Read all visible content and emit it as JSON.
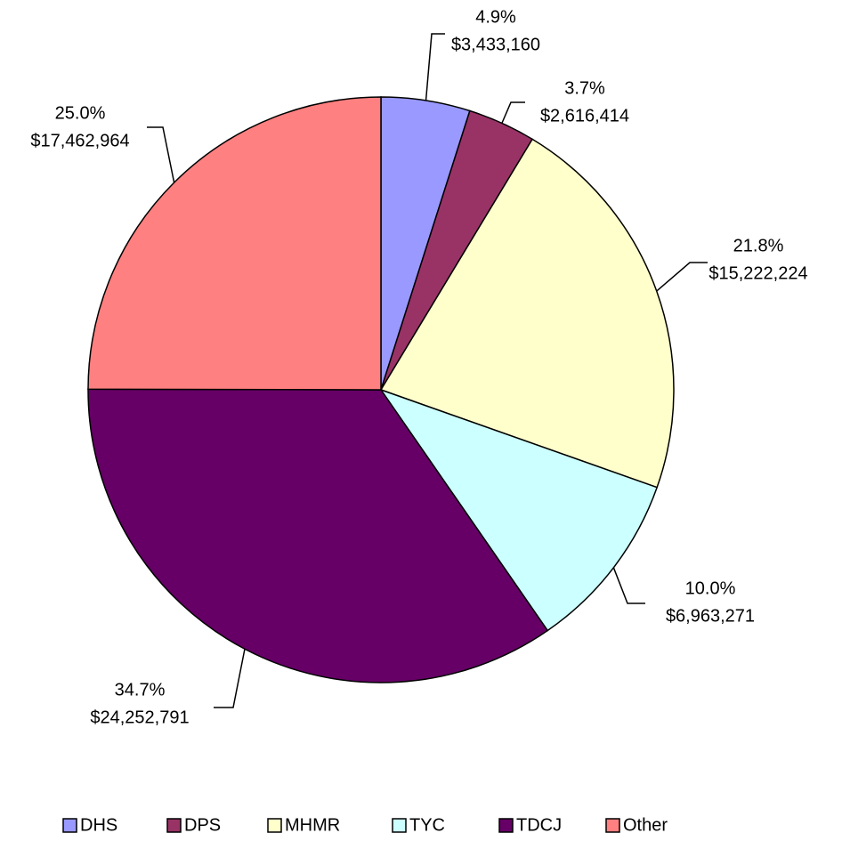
{
  "chart_data": {
    "type": "pie",
    "categories": [
      "DHS",
      "DPS",
      "MHMR",
      "TYC",
      "TDCJ",
      "Other"
    ],
    "values": [
      3433160,
      2616414,
      15222224,
      6963271,
      24252791,
      17462964
    ],
    "value_labels": [
      "$3,433,160",
      "$2,616,414",
      "$15,222,224",
      "$6,963,271",
      "$24,252,791",
      "$17,462,964"
    ],
    "percent_labels": [
      "4.9%",
      "3.7%",
      "21.8%",
      "10.0%",
      "34.7%",
      "25.0%"
    ],
    "colors": [
      "#9999ff",
      "#993366",
      "#ffffcc",
      "#ccffff",
      "#660066",
      "#ff8080"
    ]
  }
}
